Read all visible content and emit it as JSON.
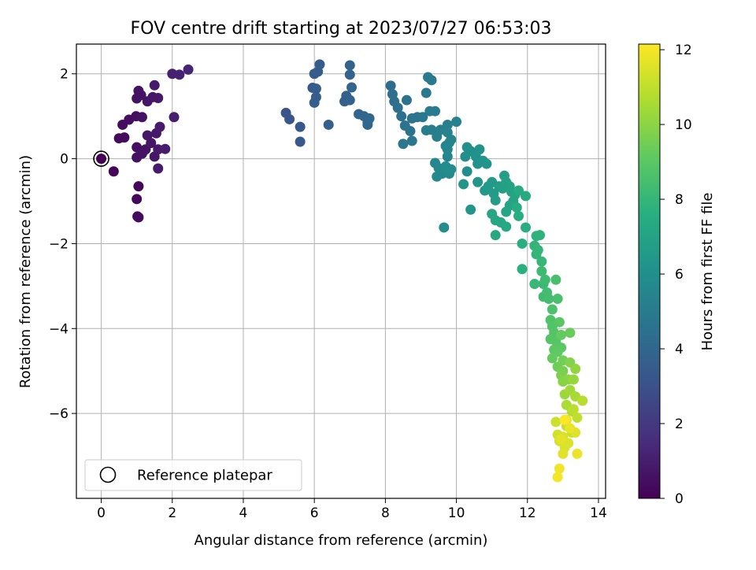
{
  "chart_data": {
    "type": "scatter",
    "title": "FOV centre drift starting at 2023/07/27 06:53:03",
    "xlabel": "Angular distance from reference (arcmin)",
    "ylabel": "Rotation from reference (arcmin)",
    "xlim": [
      -0.7,
      14.2
    ],
    "ylim": [
      -8.0,
      2.7
    ],
    "xticks": [
      0,
      2,
      4,
      6,
      8,
      10,
      12,
      14
    ],
    "yticks": [
      -6,
      -4,
      -2,
      0,
      2
    ],
    "xtick_labels": [
      "0",
      "2",
      "4",
      "6",
      "8",
      "10",
      "12",
      "14"
    ],
    "ytick_labels": [
      "−6",
      "−4",
      "−2",
      "0",
      "2"
    ],
    "grid": true,
    "legend": {
      "label": "Reference platepar",
      "placement": "lower-left"
    },
    "reference_point": {
      "x": 0,
      "y": 0
    },
    "colorbar": {
      "label": "Hours from first FF file",
      "colormap": "viridis",
      "range": [
        0,
        12.15
      ],
      "ticks": [
        0,
        2,
        4,
        6,
        8,
        10,
        12
      ],
      "tick_labels": [
        "0",
        "2",
        "4",
        "6",
        "8",
        "10",
        "12"
      ]
    },
    "series": [
      {
        "values": [
          [
            0,
            0,
            0.0
          ],
          [
            0.35,
            -0.3,
            0.1
          ],
          [
            1.05,
            -0.65,
            0.2
          ],
          [
            1.0,
            -0.95,
            0.2
          ],
          [
            1.02,
            -1.36,
            0.3
          ],
          [
            1.05,
            -1.38,
            0.35
          ],
          [
            0.5,
            0.48,
            0.3
          ],
          [
            0.65,
            0.5,
            0.35
          ],
          [
            0.6,
            0.8,
            0.4
          ],
          [
            0.78,
            0.92,
            0.45
          ],
          [
            0.98,
            1.0,
            0.5
          ],
          [
            1.15,
            0.98,
            0.55
          ],
          [
            1.0,
            1.42,
            0.6
          ],
          [
            1.05,
            1.6,
            0.6
          ],
          [
            1.12,
            1.5,
            0.65
          ],
          [
            1.3,
            1.35,
            0.7
          ],
          [
            1.45,
            1.45,
            0.75
          ],
          [
            1.6,
            1.43,
            0.8
          ],
          [
            1.5,
            1.73,
            0.85
          ],
          [
            1.0,
            0.27,
            0.5
          ],
          [
            1.15,
            0.12,
            0.55
          ],
          [
            1.0,
            0.03,
            0.6
          ],
          [
            1.25,
            0.22,
            0.6
          ],
          [
            1.4,
            0.37,
            0.7
          ],
          [
            1.5,
            0.05,
            0.7
          ],
          [
            1.3,
            0.55,
            0.75
          ],
          [
            1.55,
            0.6,
            0.8
          ],
          [
            1.6,
            0.22,
            0.85
          ],
          [
            1.65,
            0.75,
            0.9
          ],
          [
            1.8,
            0.23,
            0.95
          ],
          [
            1.6,
            -0.23,
            0.9
          ],
          [
            2.05,
            0.98,
            1.0
          ],
          [
            2.0,
            2.0,
            1.1
          ],
          [
            2.2,
            1.98,
            1.15
          ],
          [
            2.45,
            2.1,
            1.25
          ],
          [
            5.2,
            1.08,
            3.2
          ],
          [
            5.3,
            0.93,
            3.25
          ],
          [
            5.6,
            0.75,
            3.3
          ],
          [
            5.6,
            0.4,
            3.35
          ],
          [
            5.95,
            1.67,
            3.4
          ],
          [
            6.0,
            2.0,
            3.45
          ],
          [
            6.1,
            2.05,
            3.5
          ],
          [
            6.15,
            2.22,
            3.5
          ],
          [
            6.05,
            1.65,
            3.55
          ],
          [
            6.05,
            1.45,
            3.55
          ],
          [
            6.0,
            1.32,
            3.6
          ],
          [
            6.4,
            0.8,
            3.65
          ],
          [
            6.85,
            1.35,
            3.7
          ],
          [
            6.9,
            1.48,
            3.75
          ],
          [
            7.0,
            1.38,
            3.8
          ],
          [
            7.0,
            2.2,
            3.85
          ],
          [
            7.0,
            1.98,
            3.85
          ],
          [
            7.05,
            1.68,
            3.9
          ],
          [
            7.25,
            1.05,
            3.95
          ],
          [
            7.4,
            1.0,
            4.0
          ],
          [
            7.5,
            0.85,
            4.05
          ],
          [
            7.5,
            0.8,
            4.05
          ],
          [
            7.55,
            0.95,
            4.1
          ],
          [
            8.15,
            1.72,
            4.3
          ],
          [
            8.2,
            1.52,
            4.35
          ],
          [
            8.25,
            1.35,
            4.4
          ],
          [
            8.35,
            1.2,
            4.45
          ],
          [
            8.45,
            1.0,
            4.5
          ],
          [
            8.6,
            1.38,
            4.55
          ],
          [
            8.55,
            0.78,
            4.6
          ],
          [
            8.7,
            0.65,
            4.65
          ],
          [
            8.75,
            0.95,
            4.7
          ],
          [
            8.9,
            0.98,
            4.75
          ],
          [
            8.5,
            0.35,
            4.8
          ],
          [
            8.75,
            0.42,
            4.8
          ],
          [
            9.05,
            0.98,
            4.85
          ],
          [
            9.15,
            1.55,
            4.9
          ],
          [
            9.2,
            1.92,
            4.9
          ],
          [
            9.3,
            1.85,
            4.95
          ],
          [
            9.25,
            1.12,
            5.0
          ],
          [
            9.4,
            1.12,
            5.05
          ],
          [
            9.15,
            0.67,
            5.05
          ],
          [
            9.3,
            0.68,
            5.1
          ],
          [
            9.45,
            0.52,
            5.15
          ],
          [
            9.55,
            0.68,
            5.2
          ],
          [
            9.75,
            0.8,
            5.3
          ],
          [
            10.0,
            0.87,
            5.35
          ],
          [
            9.75,
            0.62,
            5.35
          ],
          [
            9.85,
            0.45,
            5.4
          ],
          [
            9.7,
            0.3,
            5.45
          ],
          [
            9.75,
            0.05,
            5.5
          ],
          [
            9.8,
            0.38,
            5.5
          ],
          [
            9.75,
            0.22,
            5.55
          ],
          [
            9.4,
            -0.1,
            5.6
          ],
          [
            9.5,
            -0.22,
            5.65
          ],
          [
            9.45,
            -0.42,
            5.7
          ],
          [
            9.6,
            -0.35,
            5.75
          ],
          [
            9.8,
            -0.35,
            5.8
          ],
          [
            9.85,
            -0.25,
            5.85
          ],
          [
            9.7,
            -0.18,
            5.9
          ],
          [
            10.3,
            -0.3,
            5.95
          ],
          [
            10.25,
            0.05,
            6.0
          ],
          [
            10.3,
            0.27,
            6.0
          ],
          [
            10.4,
            0.18,
            6.05
          ],
          [
            10.55,
            0.05,
            6.1
          ],
          [
            10.6,
            -0.12,
            6.15
          ],
          [
            10.65,
            0.22,
            6.2
          ],
          [
            10.75,
            -0.05,
            6.25
          ],
          [
            10.85,
            -0.12,
            6.3
          ],
          [
            10.2,
            -0.6,
            6.3
          ],
          [
            10.4,
            -1.2,
            6.35
          ],
          [
            9.65,
            -1.62,
            5.9
          ],
          [
            10.6,
            -0.55,
            6.4
          ],
          [
            10.8,
            -0.75,
            6.45
          ],
          [
            10.9,
            -0.65,
            6.5
          ],
          [
            11.0,
            -0.55,
            6.55
          ],
          [
            11.05,
            -0.82,
            6.6
          ],
          [
            11.1,
            -0.98,
            6.65
          ],
          [
            11.2,
            -0.65,
            6.7
          ],
          [
            11.35,
            -0.4,
            6.75
          ],
          [
            11.3,
            -0.7,
            6.8
          ],
          [
            11.4,
            -0.55,
            6.85
          ],
          [
            11.5,
            -0.65,
            6.9
          ],
          [
            11.55,
            -0.78,
            6.95
          ],
          [
            11.6,
            -1.0,
            7.0
          ],
          [
            11.65,
            -0.85,
            7.05
          ],
          [
            11.5,
            -1.1,
            7.1
          ],
          [
            11.4,
            -1.25,
            7.1
          ],
          [
            11.0,
            -1.3,
            7.15
          ],
          [
            11.1,
            -1.45,
            7.2
          ],
          [
            11.25,
            -1.5,
            7.25
          ],
          [
            11.4,
            -1.6,
            7.3
          ],
          [
            11.1,
            -1.8,
            7.3
          ],
          [
            11.75,
            -0.75,
            7.35
          ],
          [
            11.95,
            -0.88,
            7.4
          ],
          [
            11.7,
            -1.15,
            7.45
          ],
          [
            11.75,
            -1.35,
            7.5
          ],
          [
            11.95,
            -1.62,
            7.55
          ],
          [
            11.85,
            -2.0,
            7.6
          ],
          [
            11.85,
            -2.6,
            7.65
          ],
          [
            12.25,
            -1.82,
            7.8
          ],
          [
            12.35,
            -1.8,
            7.8
          ],
          [
            12.2,
            -2.05,
            7.9
          ],
          [
            12.25,
            -2.25,
            7.95
          ],
          [
            12.3,
            -2.15,
            8.0
          ],
          [
            12.4,
            -2.42,
            8.05
          ],
          [
            12.2,
            -2.95,
            8.1
          ],
          [
            12.45,
            -2.95,
            8.15
          ],
          [
            12.4,
            -2.65,
            8.2
          ],
          [
            12.5,
            -2.85,
            8.25
          ],
          [
            12.45,
            -3.25,
            8.3
          ],
          [
            12.55,
            -3.15,
            8.35
          ],
          [
            12.6,
            -3.3,
            8.4
          ],
          [
            12.8,
            -2.85,
            8.5
          ],
          [
            12.85,
            -3.3,
            8.55
          ],
          [
            12.7,
            -3.55,
            8.6
          ],
          [
            12.65,
            -3.8,
            8.7
          ],
          [
            12.7,
            -3.95,
            8.75
          ],
          [
            12.75,
            -4.1,
            8.8
          ],
          [
            12.65,
            -4.25,
            8.85
          ],
          [
            12.8,
            -4.3,
            8.9
          ],
          [
            12.9,
            -3.85,
            8.95
          ],
          [
            12.95,
            -4.45,
            9.0
          ],
          [
            12.75,
            -4.5,
            9.05
          ],
          [
            12.85,
            -4.55,
            9.1
          ],
          [
            12.7,
            -4.7,
            9.2
          ],
          [
            12.95,
            -4.15,
            9.2
          ],
          [
            13.2,
            -4.1,
            9.3
          ],
          [
            12.85,
            -4.9,
            9.4
          ],
          [
            13.0,
            -4.75,
            9.5
          ],
          [
            13.0,
            -5.0,
            9.6
          ],
          [
            12.95,
            -5.1,
            9.7
          ],
          [
            13.2,
            -4.8,
            9.8
          ],
          [
            13.0,
            -5.25,
            9.9
          ],
          [
            13.15,
            -5.2,
            10.0
          ],
          [
            13.35,
            -4.95,
            10.1
          ],
          [
            13.3,
            -5.2,
            10.2
          ],
          [
            13.05,
            -5.55,
            10.3
          ],
          [
            13.2,
            -5.45,
            10.4
          ],
          [
            13.35,
            -5.6,
            10.5
          ],
          [
            13.1,
            -5.8,
            10.6
          ],
          [
            13.25,
            -5.95,
            10.7
          ],
          [
            13.55,
            -5.7,
            10.8
          ],
          [
            13.3,
            -5.9,
            10.9
          ],
          [
            13.4,
            -6.1,
            11.0
          ],
          [
            13.1,
            -6.3,
            11.1
          ],
          [
            13.25,
            -6.45,
            11.15
          ],
          [
            12.8,
            -6.2,
            11.2
          ],
          [
            12.85,
            -6.5,
            11.3
          ],
          [
            12.9,
            -6.65,
            11.35
          ],
          [
            13.0,
            -6.55,
            11.4
          ],
          [
            13.05,
            -6.8,
            11.45
          ],
          [
            13.15,
            -6.7,
            11.5
          ],
          [
            13.35,
            -6.45,
            11.55
          ],
          [
            13.0,
            -6.95,
            11.6
          ],
          [
            12.95,
            -6.6,
            11.65
          ],
          [
            13.1,
            -6.15,
            11.7
          ],
          [
            13.2,
            -6.35,
            11.75
          ],
          [
            13.4,
            -6.95,
            11.8
          ],
          [
            12.9,
            -7.3,
            11.9
          ],
          [
            12.85,
            -7.5,
            11.95
          ],
          [
            13.05,
            -6.15,
            12.1
          ]
        ]
      }
    ]
  }
}
